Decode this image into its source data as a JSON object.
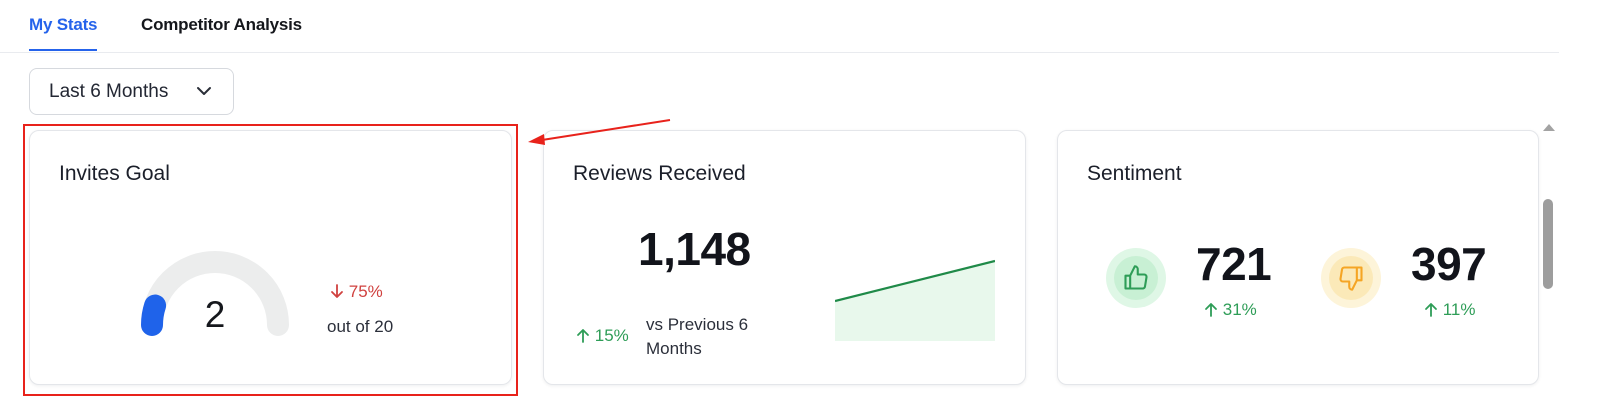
{
  "tabs": [
    {
      "label": "My Stats",
      "active": true
    },
    {
      "label": "Competitor Analysis",
      "active": false
    }
  ],
  "filter": {
    "selected": "Last 6 Months"
  },
  "invites_goal": {
    "title": "Invites Goal",
    "value": "2",
    "goal": 20,
    "progress_fraction": 0.1,
    "change": "75%",
    "change_direction": "down",
    "out_of_label": "out of 20"
  },
  "reviews_received": {
    "title": "Reviews Received",
    "value": "1,148",
    "change": "15%",
    "change_direction": "up",
    "comparison_label": "vs Previous 6 Months"
  },
  "sentiment": {
    "title": "Sentiment",
    "positive": {
      "value": "721",
      "change": "31%",
      "icon": "thumbs-up-icon"
    },
    "negative": {
      "value": "397",
      "change": "11%",
      "icon": "thumbs-down-icon"
    }
  },
  "colors": {
    "accent": "#2563eb",
    "positive": "#2e9d57",
    "negative": "#d0413f",
    "highlight": "#e8221b",
    "warning": "#f5a524"
  }
}
